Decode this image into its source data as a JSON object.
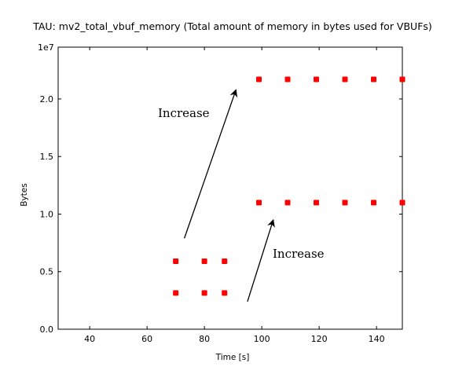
{
  "chart_data": {
    "type": "scatter",
    "title": "TAU: mv2_total_vbuf_memory (Total amount of memory in bytes used for VBUFs)",
    "xlabel": "Time [s]",
    "ylabel": "Bytes",
    "y_offset_label": "1e7",
    "xlim": [
      29,
      149
    ],
    "ylim": [
      0,
      2.45
    ],
    "x_ticks": [
      40,
      60,
      80,
      100,
      120,
      140
    ],
    "y_ticks": [
      0.0,
      0.5,
      1.0,
      1.5,
      2.0
    ],
    "y_tick_labels": [
      "0.0",
      "0.5",
      "1.0",
      "1.5",
      "2.0"
    ],
    "marker_color": "#ff0000",
    "grid": false,
    "points": [
      {
        "x": 70,
        "y": 0.315
      },
      {
        "x": 80,
        "y": 0.315
      },
      {
        "x": 87,
        "y": 0.315
      },
      {
        "x": 70,
        "y": 0.59
      },
      {
        "x": 80,
        "y": 0.59
      },
      {
        "x": 87,
        "y": 0.59
      },
      {
        "x": 99,
        "y": 1.1
      },
      {
        "x": 109,
        "y": 1.1
      },
      {
        "x": 119,
        "y": 1.1
      },
      {
        "x": 129,
        "y": 1.1
      },
      {
        "x": 139,
        "y": 1.1
      },
      {
        "x": 149,
        "y": 1.1
      },
      {
        "x": 99,
        "y": 2.17
      },
      {
        "x": 109,
        "y": 2.17
      },
      {
        "x": 119,
        "y": 2.17
      },
      {
        "x": 129,
        "y": 2.17
      },
      {
        "x": 139,
        "y": 2.17
      },
      {
        "x": 149,
        "y": 2.17
      }
    ],
    "annotations": [
      {
        "text": "Increase",
        "arrow_from": [
          73,
          0.79
        ],
        "arrow_to": [
          91,
          2.08
        ]
      },
      {
        "text": "Increase",
        "arrow_from": [
          95,
          0.24
        ],
        "arrow_to": [
          104,
          0.95
        ]
      }
    ]
  }
}
